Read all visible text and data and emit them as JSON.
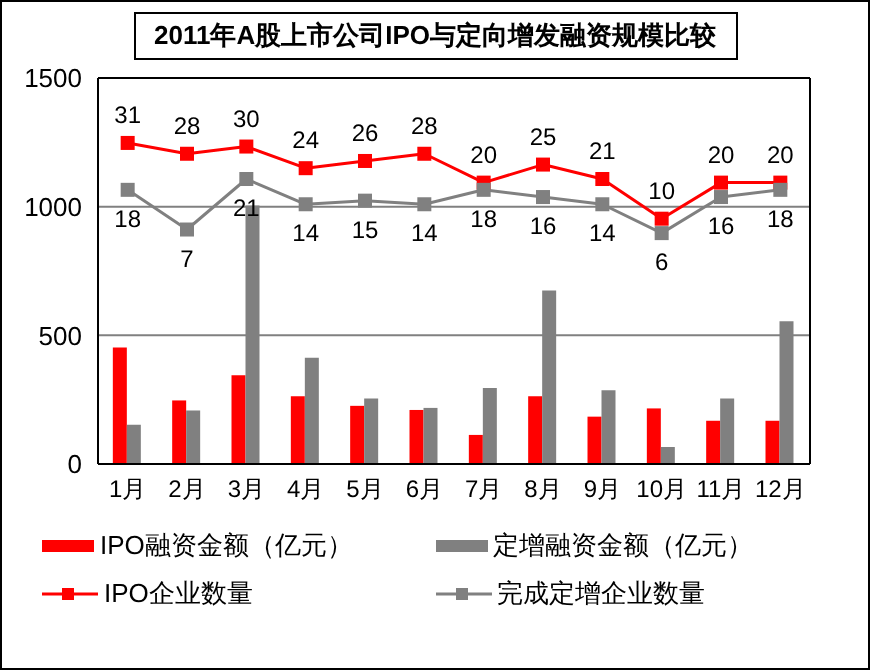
{
  "chart_data": {
    "type": "bar",
    "title": "2011年A股上市公司IPO与定向增发融资规模比较",
    "categories": [
      "1月",
      "2月",
      "3月",
      "4月",
      "5月",
      "6月",
      "7月",
      "8月",
      "9月",
      "10月",
      "11月",
      "12月"
    ],
    "series": [
      {
        "name": "IPO融资金额（亿元）",
        "color": "#ff0000",
        "values": [
          453,
          247,
          345,
          263,
          226,
          210,
          113,
          263,
          184,
          216,
          168,
          168
        ]
      },
      {
        "name": "定增融资金额（亿元）",
        "color": "#808080",
        "values": [
          153,
          208,
          1005,
          413,
          255,
          218,
          295,
          674,
          287,
          66,
          255,
          555
        ]
      },
      {
        "name": "IPO企业数量",
        "type": "line",
        "axis": "y2",
        "color": "#ff0000",
        "data_labels": true,
        "values": [
          31,
          28,
          30,
          24,
          26,
          28,
          20,
          25,
          21,
          10,
          20,
          20
        ]
      },
      {
        "name": "完成定增企业数量",
        "type": "line",
        "axis": "y2",
        "color": "#808080",
        "data_labels": true,
        "values": [
          18,
          7,
          21,
          14,
          15,
          14,
          18,
          16,
          14,
          6,
          16,
          18
        ]
      }
    ],
    "ylim": [
      0,
      1500
    ],
    "yticks": [
      0,
      500,
      1000,
      1500
    ],
    "y2lim": [
      -58,
      49
    ],
    "grid": "y",
    "legend": "bottom",
    "marker": "square",
    "line_style": "solid"
  }
}
